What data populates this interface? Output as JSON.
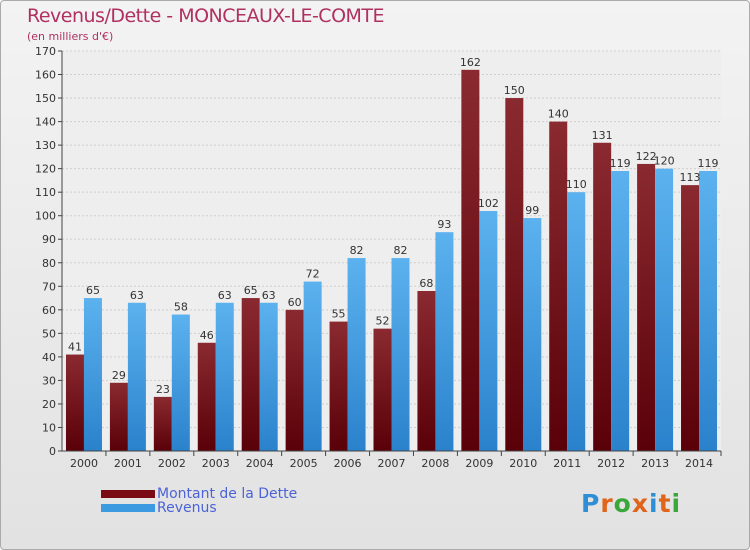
{
  "header": {
    "title": "Revenus/Dette - MONCEAUX-LE-COMTE",
    "subtitle": "(en milliers d'€)"
  },
  "legend": {
    "items": [
      {
        "label": "Montant de la Dette",
        "color": "#7a0a14"
      },
      {
        "label": "Revenus",
        "color": "#3c9be0"
      }
    ]
  },
  "logo": {
    "letters": [
      "P",
      "r",
      "o",
      "x",
      "i",
      "t",
      "i"
    ],
    "colors": [
      "#2e8fd6",
      "#e0641a",
      "#3aa73a",
      "#e0641a",
      "#2e8fd6",
      "#e0641a",
      "#3aa73a"
    ]
  },
  "chart_data": {
    "type": "bar",
    "title": "Revenus/Dette - MONCEAUX-LE-COMTE",
    "subtitle": "(en milliers d'€)",
    "categories": [
      "2000",
      "2001",
      "2002",
      "2003",
      "2004",
      "2005",
      "2006",
      "2007",
      "2008",
      "2009",
      "2010",
      "2011",
      "2012",
      "2013",
      "2014"
    ],
    "series": [
      {
        "name": "Montant de la Dette",
        "color": "#7a0a14",
        "values": [
          41,
          29,
          23,
          46,
          65,
          60,
          55,
          52,
          68,
          162,
          150,
          140,
          131,
          122,
          113
        ]
      },
      {
        "name": "Revenus",
        "color": "#3c9be0",
        "values": [
          65,
          63,
          58,
          63,
          63,
          72,
          82,
          82,
          93,
          102,
          99,
          110,
          119,
          120,
          119
        ]
      }
    ],
    "ylim": [
      0,
      170
    ],
    "yticks": [
      0,
      10,
      20,
      30,
      40,
      50,
      60,
      70,
      80,
      90,
      100,
      110,
      120,
      130,
      140,
      150,
      160,
      170
    ],
    "grid": true,
    "legend_position": "bottom-left"
  }
}
